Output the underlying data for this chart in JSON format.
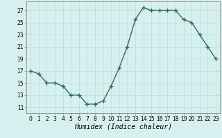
{
  "x": [
    0,
    1,
    2,
    3,
    4,
    5,
    6,
    7,
    8,
    9,
    10,
    11,
    12,
    13,
    14,
    15,
    16,
    17,
    18,
    19,
    20,
    21,
    22,
    23
  ],
  "y": [
    17,
    16.5,
    15,
    15,
    14.5,
    13,
    13,
    11.5,
    11.5,
    12,
    14.5,
    17.5,
    21,
    25.5,
    27.5,
    27,
    27,
    27,
    27,
    25.5,
    25,
    23,
    21,
    19
  ],
  "line_color": "#2e6b5e",
  "marker": "D",
  "marker_size": 2.5,
  "bg_color": "#d6f0ef",
  "grid_major_color": "#c0dedd",
  "grid_minor_color": "#daeeed",
  "title": "",
  "xlabel": "Humidex (Indice chaleur)",
  "ylabel": "",
  "ylim": [
    10,
    28.5
  ],
  "xlim": [
    -0.5,
    23.5
  ],
  "yticks": [
    11,
    13,
    15,
    17,
    19,
    21,
    23,
    25,
    27
  ],
  "xticks": [
    0,
    1,
    2,
    3,
    4,
    5,
    6,
    7,
    8,
    9,
    10,
    11,
    12,
    13,
    14,
    15,
    16,
    17,
    18,
    19,
    20,
    21,
    22,
    23
  ],
  "xtick_labels": [
    "0",
    "1",
    "2",
    "3",
    "4",
    "5",
    "6",
    "7",
    "8",
    "9",
    "10",
    "11",
    "12",
    "13",
    "14",
    "15",
    "16",
    "17",
    "18",
    "19",
    "20",
    "21",
    "22",
    "23"
  ],
  "tick_fontsize": 5.5,
  "xlabel_fontsize": 7,
  "line_width": 1.0
}
